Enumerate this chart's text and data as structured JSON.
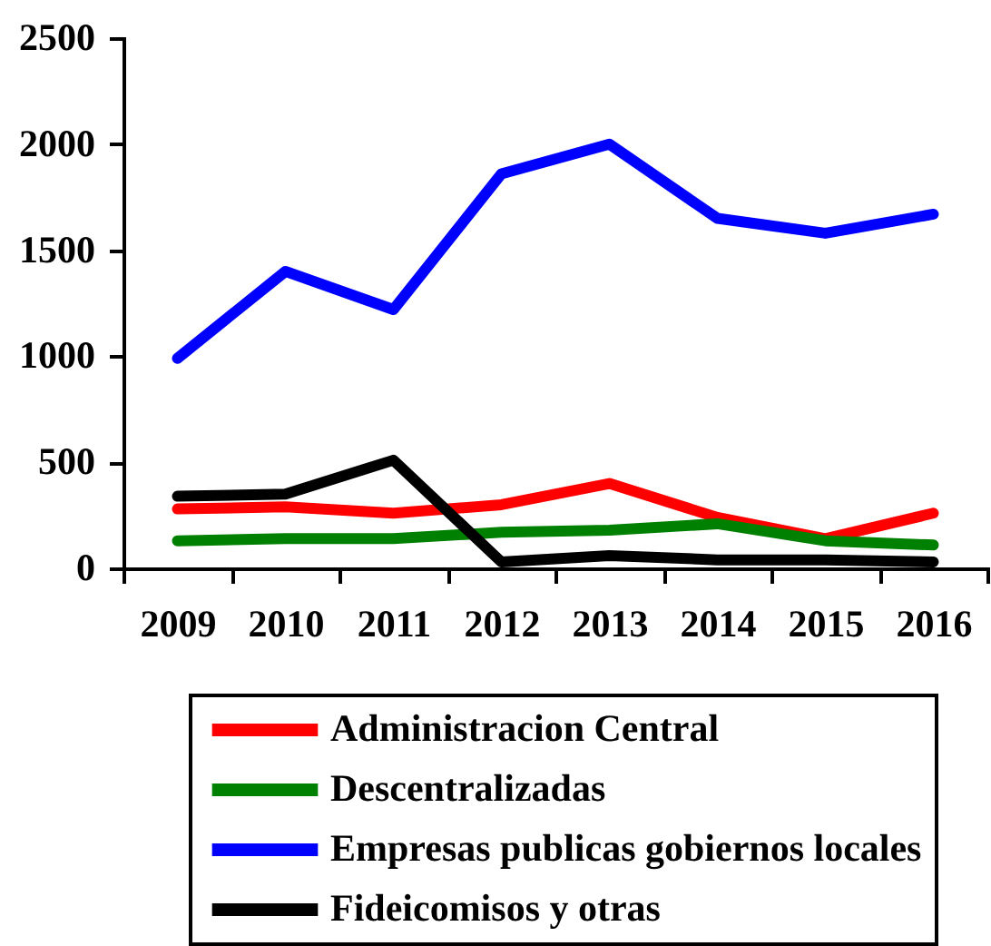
{
  "chart_data": {
    "type": "line",
    "categories": [
      "2009",
      "2010",
      "2011",
      "2012",
      "2013",
      "2014",
      "2015",
      "2016"
    ],
    "series": [
      {
        "name": "Administracion Central",
        "color": "#ff0000",
        "values": [
          280,
          290,
          260,
          300,
          400,
          240,
          140,
          260
        ]
      },
      {
        "name": "Descentralizadas",
        "color": "#008000",
        "values": [
          130,
          140,
          140,
          170,
          180,
          210,
          130,
          110
        ]
      },
      {
        "name": "Empresas publicas gobiernos locales",
        "color": "#0000ff",
        "values": [
          990,
          1400,
          1220,
          1860,
          2000,
          1650,
          1580,
          1670
        ]
      },
      {
        "name": "Fideicomisos y otras",
        "color": "#000000",
        "values": [
          340,
          350,
          510,
          30,
          60,
          40,
          40,
          30
        ]
      }
    ],
    "ylim": [
      0,
      2500
    ],
    "yticks": [
      0,
      500,
      1000,
      1500,
      2000,
      2500
    ],
    "grid": false,
    "legend": "bottom",
    "marker": "none",
    "line_style": "solid"
  }
}
